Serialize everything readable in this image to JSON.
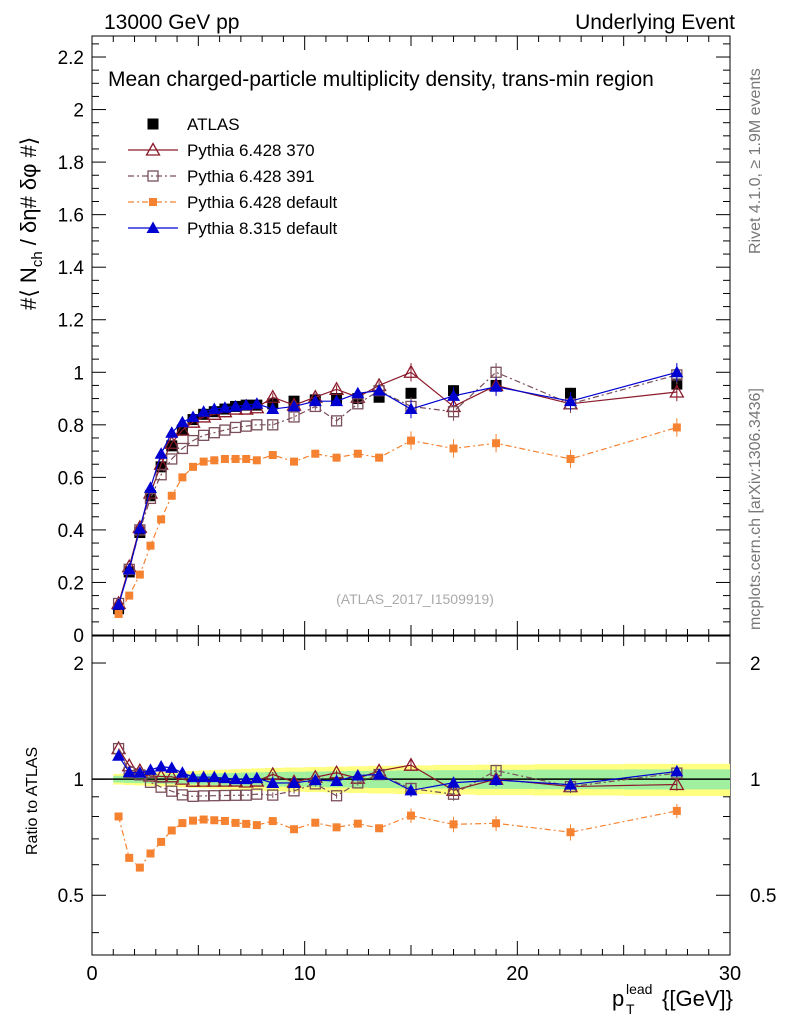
{
  "header": {
    "left": "13000 GeV pp",
    "right": "Underlying Event"
  },
  "chart_data": {
    "type": "scatter",
    "title": "Mean charged-particle multiplicity density, trans-min region",
    "analysis_id": "(ATLAS_2017_I1509919)",
    "side_label_top": "Rivet 4.1.0, ≥ 1.9M events",
    "side_label_bottom": "mcplots.cern.ch [arXiv:1306.3436]",
    "ylabel_main": "#⟨ N_ch / δη# δφ #⟩",
    "ylabel_ratio": "Ratio to ATLAS",
    "xlabel": "p_T^lead {[GeV]}",
    "xlim": [
      0,
      30
    ],
    "ylim": [
      0,
      2.28
    ],
    "ratio_ylim": [
      0.35,
      2.35
    ],
    "x_ticks": [
      0,
      10,
      20,
      30
    ],
    "y_ticks": [
      0,
      0.2,
      0.4,
      0.6,
      0.8,
      1,
      1.2,
      1.4,
      1.6,
      1.8,
      2,
      2.2
    ],
    "y_tick_labels": [
      "0",
      "0.2",
      "0.4",
      "0.6",
      "0.8",
      "1",
      "1.2",
      "1.4",
      "1.6",
      "1.8",
      "2",
      "2.2"
    ],
    "ratio_ticks": [
      0.5,
      1,
      2
    ],
    "ratio_tick_labels": [
      "0.5",
      "1",
      "2"
    ],
    "x": [
      1.25,
      1.75,
      2.25,
      2.75,
      3.25,
      3.75,
      4.25,
      4.75,
      5.25,
      5.75,
      6.25,
      6.75,
      7.25,
      7.75,
      8.5,
      9.5,
      10.5,
      11.5,
      12.5,
      13.5,
      15,
      17,
      19,
      22.5,
      27.5
    ],
    "series": [
      {
        "name": "ATLAS",
        "color": "#000000",
        "marker": "square-filled",
        "values": [
          0.1,
          0.24,
          0.39,
          0.53,
          0.64,
          0.72,
          0.78,
          0.82,
          0.84,
          0.85,
          0.86,
          0.87,
          0.875,
          0.875,
          0.88,
          0.89,
          0.895,
          0.9,
          0.9,
          0.905,
          0.92,
          0.93,
          0.95,
          0.92,
          0.955
        ]
      },
      {
        "name": "Pythia 6.428 370",
        "color": "#8b1a2b",
        "marker": "triangle-open",
        "values": [
          0.12,
          0.26,
          0.41,
          0.54,
          0.65,
          0.73,
          0.78,
          0.81,
          0.83,
          0.84,
          0.85,
          0.86,
          0.86,
          0.865,
          0.905,
          0.875,
          0.905,
          0.935,
          0.905,
          0.95,
          1.0,
          0.87,
          0.95,
          0.88,
          0.925
        ]
      },
      {
        "name": "Pythia 6.428 391",
        "color": "#7a4f5a",
        "marker": "square-open",
        "values": [
          0.12,
          0.25,
          0.4,
          0.52,
          0.61,
          0.67,
          0.71,
          0.74,
          0.76,
          0.77,
          0.78,
          0.79,
          0.795,
          0.8,
          0.8,
          0.83,
          0.87,
          0.815,
          0.88,
          0.93,
          0.87,
          0.85,
          1.0,
          0.88,
          0.99
        ]
      },
      {
        "name": "Pythia 6.428 default",
        "color": "#f58231",
        "marker": "square-filled-small",
        "values": [
          0.08,
          0.15,
          0.23,
          0.34,
          0.44,
          0.53,
          0.6,
          0.64,
          0.66,
          0.665,
          0.67,
          0.67,
          0.67,
          0.665,
          0.685,
          0.66,
          0.69,
          0.675,
          0.69,
          0.675,
          0.74,
          0.71,
          0.73,
          0.67,
          0.79
        ]
      },
      {
        "name": "Pythia 8.315 default",
        "color": "#0000d0",
        "marker": "triangle-filled",
        "values": [
          0.115,
          0.25,
          0.405,
          0.56,
          0.69,
          0.77,
          0.81,
          0.83,
          0.85,
          0.86,
          0.865,
          0.87,
          0.875,
          0.88,
          0.86,
          0.87,
          0.89,
          0.89,
          0.92,
          0.93,
          0.86,
          0.91,
          0.945,
          0.89,
          1.0
        ]
      }
    ]
  }
}
